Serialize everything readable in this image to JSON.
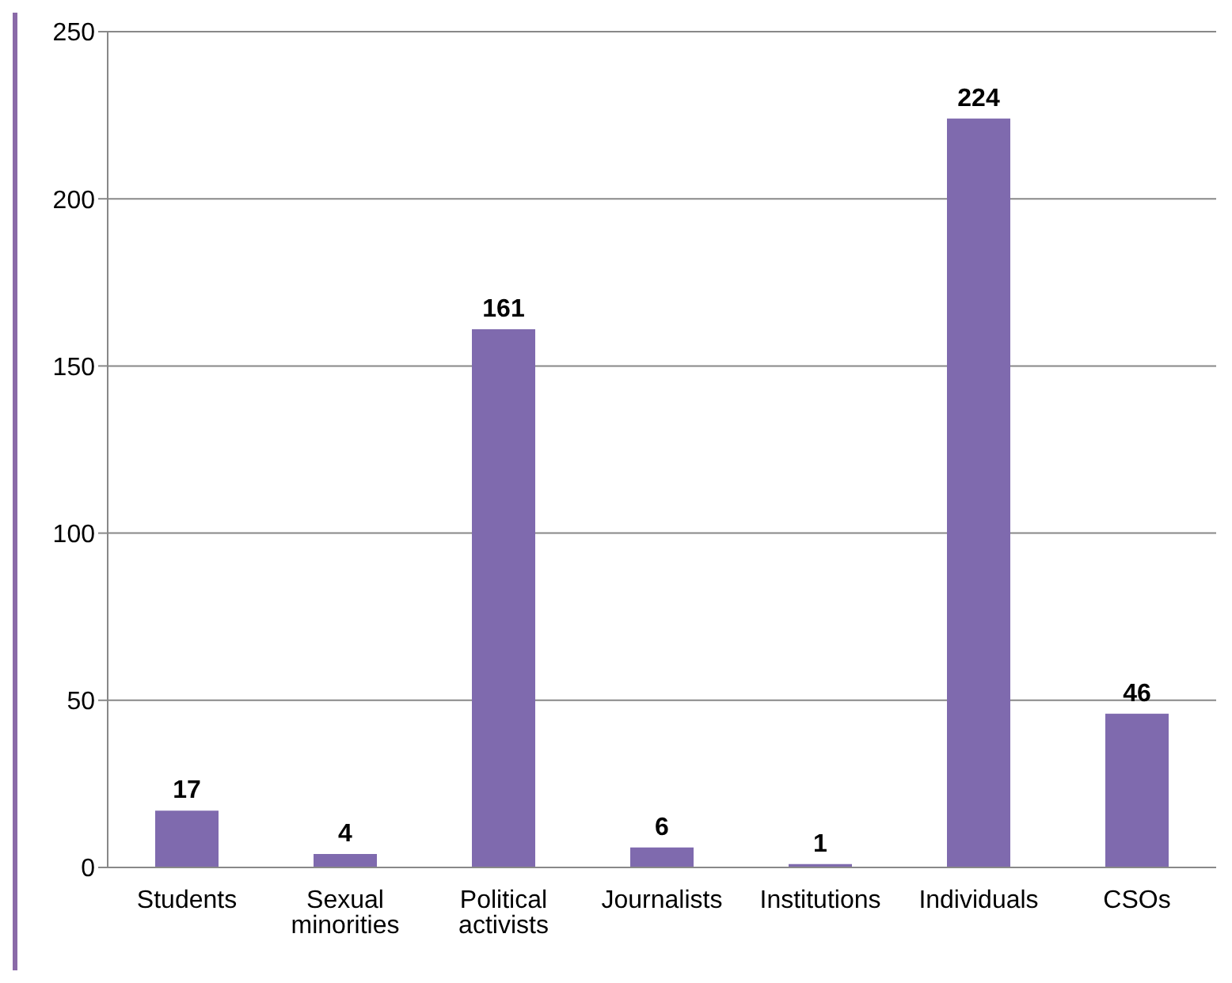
{
  "chart_data": {
    "type": "bar",
    "categories": [
      "Students",
      "Sexual minorities",
      "Political activists",
      "Journalists",
      "Institutions",
      "Individuals",
      "CSOs"
    ],
    "values": [
      17,
      4,
      161,
      6,
      1,
      224,
      46
    ],
    "color": "#7f6aae",
    "ylim": [
      0,
      250
    ],
    "yticks": [
      0,
      50,
      100,
      150,
      200,
      250
    ],
    "grid": "y",
    "data_labels": true,
    "legend": false
  }
}
